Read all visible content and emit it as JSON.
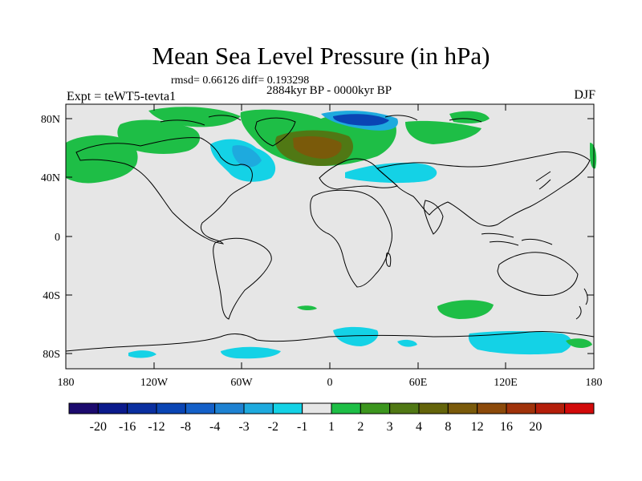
{
  "figure": {
    "title": "Mean Sea Level Pressure (in hPa)",
    "stats": "rmsd= 0.66126 diff= 0.193298",
    "period": "2884kyr BP - 0000kyr BP",
    "experiment": "Expt = teWT5-tevta1",
    "season": "DJF"
  },
  "axes": {
    "lat_ticks": [
      "80N",
      "40N",
      "0",
      "40S",
      "80S"
    ],
    "lon_ticks": [
      "180",
      "120W",
      "60W",
      "0",
      "60E",
      "120E",
      "180"
    ]
  },
  "colorbar": {
    "colors": [
      "#1c0a6e",
      "#0b1a8c",
      "#0a2fa0",
      "#0a45b4",
      "#1460c8",
      "#1e82d2",
      "#1eaade",
      "#14d2e6",
      "#e6e6e6",
      "#1ebe46",
      "#3c961e",
      "#507814",
      "#64640a",
      "#7a5a0a",
      "#8c4a0a",
      "#a0320a",
      "#b41e0a",
      "#d20a0a"
    ],
    "labels": [
      "-20",
      "-16",
      "-12",
      "-8",
      "-4",
      "-3",
      "-2",
      "-1",
      "1",
      "2",
      "3",
      "4",
      "8",
      "12",
      "16",
      "20"
    ]
  },
  "map": {
    "background": "#e6e6e6",
    "lat_range": [
      -90,
      90
    ],
    "lon_range": [
      -180,
      180
    ]
  }
}
